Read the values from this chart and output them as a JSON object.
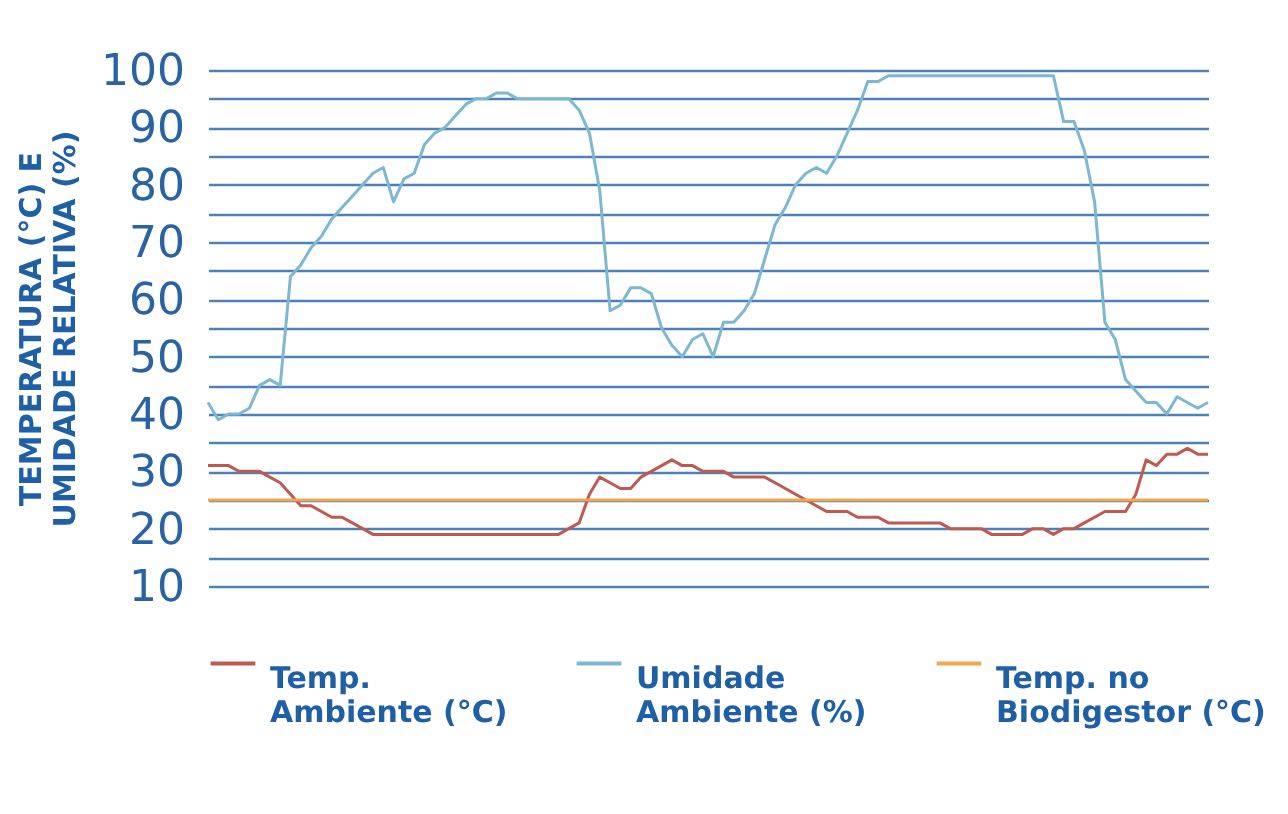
{
  "chart_data": {
    "type": "line",
    "ylabel": "TEMPERATURA (°C) E UMIDADE RELATIVA (%)",
    "categories": [
      null,
      null,
      null,
      null,
      null,
      null,
      null,
      null,
      null,
      null,
      null,
      null,
      null,
      null,
      null,
      null,
      null,
      null,
      null,
      null,
      null,
      null,
      null,
      null,
      null,
      null,
      null,
      null,
      null,
      null,
      null,
      null,
      null,
      null,
      null,
      null,
      null,
      null,
      null,
      null,
      null,
      null,
      null,
      null,
      null,
      null,
      null,
      null,
      null,
      null,
      null,
      null,
      null,
      null,
      null,
      null,
      null,
      null,
      null,
      null,
      null,
      null,
      null,
      null,
      null,
      null,
      null,
      null,
      null,
      null,
      null,
      null,
      null,
      null,
      null,
      null,
      null,
      null,
      null,
      null,
      null,
      null,
      null,
      null,
      null,
      null,
      null,
      null,
      null,
      null,
      null,
      null,
      null,
      null,
      null,
      null,
      null,
      null
    ],
    "series": [
      {
        "name": "Temp. Ambiente (°C)",
        "color": "#bf5a50",
        "values": [
          31,
          31,
          31,
          30,
          30,
          30,
          29,
          28,
          26,
          24,
          24,
          23,
          22,
          22,
          21,
          20,
          19,
          19,
          19,
          19,
          19,
          19,
          19,
          19,
          19,
          19,
          19,
          19,
          19,
          19,
          19,
          19,
          19,
          19,
          19,
          20,
          21,
          26,
          29,
          28,
          27,
          27,
          29,
          30,
          31,
          32,
          31,
          31,
          30,
          30,
          30,
          29,
          29,
          29,
          29,
          28,
          27,
          26,
          25,
          24,
          23,
          23,
          23,
          22,
          22,
          22,
          21,
          21,
          21,
          21,
          21,
          21,
          20,
          20,
          20,
          20,
          19,
          19,
          19,
          19,
          20,
          20,
          19,
          20,
          20,
          21,
          22,
          23,
          23,
          23,
          26,
          32,
          31,
          33,
          33,
          34,
          33,
          33
        ]
      },
      {
        "name": "Umidade Ambiente (%)",
        "color": "#7db8d2",
        "values": [
          42,
          39,
          40,
          40,
          41,
          45,
          46,
          45,
          64,
          66,
          69,
          71,
          74,
          76,
          78,
          80,
          82,
          83,
          77,
          81,
          82,
          87,
          89,
          90,
          92,
          94,
          95,
          95,
          96,
          96,
          95,
          95,
          95,
          95,
          95,
          95,
          93,
          89,
          79,
          58,
          59,
          62,
          62,
          61,
          55,
          52,
          50,
          53,
          54,
          50,
          56,
          56,
          58,
          61,
          67,
          73,
          76,
          80,
          82,
          83,
          82,
          85,
          89,
          93,
          98,
          98,
          99,
          99,
          99,
          99,
          99,
          99,
          99,
          99,
          99,
          99,
          99,
          99,
          99,
          99,
          99,
          99,
          99,
          91,
          91,
          86,
          77,
          56,
          53,
          46,
          44,
          42,
          42,
          40,
          43,
          42,
          41,
          42
        ]
      },
      {
        "name": "Temp. no Biodigestor (°C)",
        "color": "#f0a850",
        "values": [
          25,
          25,
          25,
          25,
          25,
          25,
          25,
          25,
          25,
          25,
          25,
          25,
          25,
          25,
          25,
          25,
          25,
          25,
          25,
          25,
          25,
          25,
          25,
          25,
          25,
          25,
          25,
          25,
          25,
          25,
          25,
          25,
          25,
          25,
          25,
          25,
          25,
          25,
          25,
          25,
          25,
          25,
          25,
          25,
          25,
          25,
          25,
          25,
          25,
          25,
          25,
          25,
          25,
          25,
          25,
          25,
          25,
          25,
          25,
          25,
          25,
          25,
          25,
          25,
          25,
          25,
          25,
          25,
          25,
          25,
          25,
          25,
          25,
          25,
          25,
          25,
          25,
          25,
          25,
          25,
          25,
          25,
          25,
          25,
          25,
          25,
          25,
          25,
          25,
          25,
          25,
          25,
          25,
          25,
          25,
          25,
          25,
          25
        ]
      }
    ],
    "ylim": [
      10,
      100
    ],
    "yticks": [
      10,
      {
        "value": 15,
        "label": null
      },
      20,
      {
        "value": 25,
        "label": null
      },
      30,
      {
        "value": 35,
        "label": null
      },
      40,
      {
        "value": 45,
        "label": null
      },
      50,
      {
        "value": 55,
        "label": null
      },
      60,
      {
        "value": 65,
        "label": null
      },
      70,
      {
        "value": 75,
        "label": null
      },
      80,
      {
        "value": 85,
        "label": null
      },
      90,
      {
        "value": 95,
        "label": null
      },
      100
    ],
    "grid": "y",
    "legend": "bottom",
    "tick_labels": "y"
  }
}
